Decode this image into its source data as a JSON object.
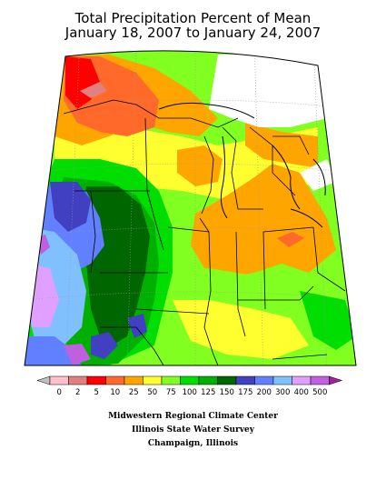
{
  "title": {
    "line1": "Total Precipitation Percent of Mean",
    "line2": "January 18, 2007 to January 24, 2007"
  },
  "legend": {
    "colors": [
      "#c0c0c0",
      "#ffc0cb",
      "#e08080",
      "#ff0000",
      "#ff6a2a",
      "#ffa500",
      "#ffff30",
      "#80ff20",
      "#00dd00",
      "#00b000",
      "#006600",
      "#4040c0",
      "#6080ff",
      "#80c0ff",
      "#e0a0ff",
      "#c060e0",
      "#a020a0"
    ],
    "labels": [
      "0",
      "2",
      "5",
      "10",
      "25",
      "50",
      "75",
      "100",
      "125",
      "150",
      "175",
      "200",
      "300",
      "400",
      "500"
    ]
  },
  "credits": {
    "line1": "Midwestern Regional Climate Center",
    "line2": "Illinois State Water Survey",
    "line3": "Champaign, Illinois"
  }
}
